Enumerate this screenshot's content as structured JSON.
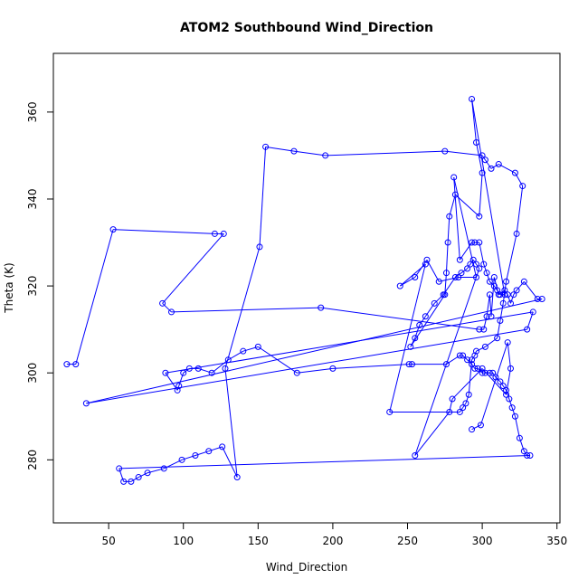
{
  "chart_data": {
    "type": "line",
    "title": "ATOM2 Southbound Wind_Direction",
    "xlabel": "Wind_Direction",
    "ylabel": "Theta (K)",
    "xlim": [
      13,
      352
    ],
    "ylim": [
      265.5,
      373.5
    ],
    "x_ticks": [
      50,
      100,
      150,
      200,
      250,
      300,
      350
    ],
    "y_ticks": [
      280,
      300,
      320,
      340,
      360
    ],
    "grid": false,
    "series": [
      {
        "color": "#0000ff",
        "marker": "open-circle",
        "points": [
          [
            22,
            302
          ],
          [
            28,
            302
          ],
          [
            53,
            333
          ],
          [
            121,
            332
          ],
          [
            127,
            332
          ],
          [
            86,
            316
          ],
          [
            92,
            314
          ],
          [
            192,
            315
          ],
          [
            298,
            310
          ],
          [
            301,
            310
          ],
          [
            303,
            313
          ],
          [
            305,
            318
          ],
          [
            306,
            313
          ],
          [
            308,
            322
          ],
          [
            311,
            318
          ],
          [
            315,
            319
          ],
          [
            317,
            318
          ],
          [
            319,
            316
          ],
          [
            321,
            318
          ],
          [
            323,
            319
          ],
          [
            328,
            321
          ],
          [
            337,
            317
          ],
          [
            340,
            317
          ],
          [
            35,
            293
          ],
          [
            330,
            310
          ],
          [
            334,
            314
          ],
          [
            88,
            300
          ],
          [
            96,
            296
          ],
          [
            97,
            297
          ],
          [
            100,
            300
          ],
          [
            104,
            301
          ],
          [
            110,
            301
          ],
          [
            119,
            300
          ],
          [
            130,
            303
          ],
          [
            140,
            305
          ],
          [
            150,
            306
          ],
          [
            176,
            300
          ],
          [
            200,
            301
          ],
          [
            251,
            302
          ],
          [
            253,
            302
          ],
          [
            276,
            302
          ],
          [
            285,
            304
          ],
          [
            287,
            304
          ],
          [
            290,
            303
          ],
          [
            293,
            302
          ],
          [
            295,
            301
          ],
          [
            297,
            301
          ],
          [
            300,
            300
          ],
          [
            302,
            300
          ],
          [
            305,
            300
          ],
          [
            307,
            300
          ],
          [
            309,
            299
          ],
          [
            312,
            298
          ],
          [
            314,
            297
          ],
          [
            316,
            296
          ],
          [
            318,
            294
          ],
          [
            320,
            292
          ],
          [
            322,
            290
          ],
          [
            325,
            285
          ],
          [
            328,
            282
          ],
          [
            330,
            281
          ],
          [
            332,
            281
          ],
          [
            57,
            278
          ],
          [
            60,
            275
          ],
          [
            65,
            275
          ],
          [
            70,
            276
          ],
          [
            76,
            277
          ],
          [
            87,
            278
          ],
          [
            99,
            280
          ],
          [
            108,
            281
          ],
          [
            117,
            282
          ],
          [
            126,
            283
          ],
          [
            136,
            276
          ],
          [
            128,
            301
          ],
          [
            151,
            329
          ],
          [
            155,
            352
          ],
          [
            174,
            351
          ],
          [
            195,
            350
          ],
          [
            275,
            351
          ],
          [
            300,
            350
          ],
          [
            302,
            349
          ],
          [
            306,
            347
          ],
          [
            311,
            348
          ],
          [
            322,
            346
          ],
          [
            327,
            343
          ],
          [
            323,
            332
          ],
          [
            316,
            321
          ],
          [
            314,
            316
          ],
          [
            312,
            312
          ],
          [
            310,
            308
          ],
          [
            302,
            306
          ],
          [
            296,
            305
          ],
          [
            295,
            304
          ],
          [
            293,
            303
          ],
          [
            291,
            295
          ],
          [
            289,
            293
          ],
          [
            287,
            292
          ],
          [
            285,
            291
          ],
          [
            238,
            291
          ],
          [
            262,
            325
          ],
          [
            245,
            320
          ],
          [
            255,
            322
          ],
          [
            263,
            326
          ],
          [
            271,
            321
          ],
          [
            284,
            322
          ],
          [
            296,
            322
          ],
          [
            281,
            345
          ],
          [
            285,
            326
          ],
          [
            293,
            330
          ],
          [
            295,
            330
          ],
          [
            298,
            330
          ],
          [
            301,
            325
          ],
          [
            303,
            323
          ],
          [
            305,
            321
          ],
          [
            308,
            320
          ],
          [
            310,
            319
          ],
          [
            312,
            318
          ],
          [
            315,
            318
          ],
          [
            293,
            363
          ],
          [
            296,
            353
          ],
          [
            300,
            346
          ],
          [
            298,
            336
          ],
          [
            282,
            341
          ],
          [
            278,
            336
          ],
          [
            277,
            330
          ],
          [
            276,
            323
          ],
          [
            275,
            318
          ],
          [
            252,
            306
          ],
          [
            255,
            308
          ],
          [
            258,
            311
          ],
          [
            262,
            313
          ],
          [
            268,
            316
          ],
          [
            274,
            318
          ],
          [
            282,
            322
          ],
          [
            286,
            323
          ],
          [
            290,
            324
          ],
          [
            292,
            325
          ],
          [
            294,
            326
          ],
          [
            296,
            325
          ],
          [
            298,
            324
          ],
          [
            255,
            281
          ],
          [
            278,
            291
          ],
          [
            280,
            294
          ],
          [
            300,
            301
          ],
          [
            316,
            295
          ],
          [
            319,
            301
          ],
          [
            317,
            307
          ],
          [
            299,
            288
          ],
          [
            293,
            287
          ]
        ]
      }
    ]
  }
}
